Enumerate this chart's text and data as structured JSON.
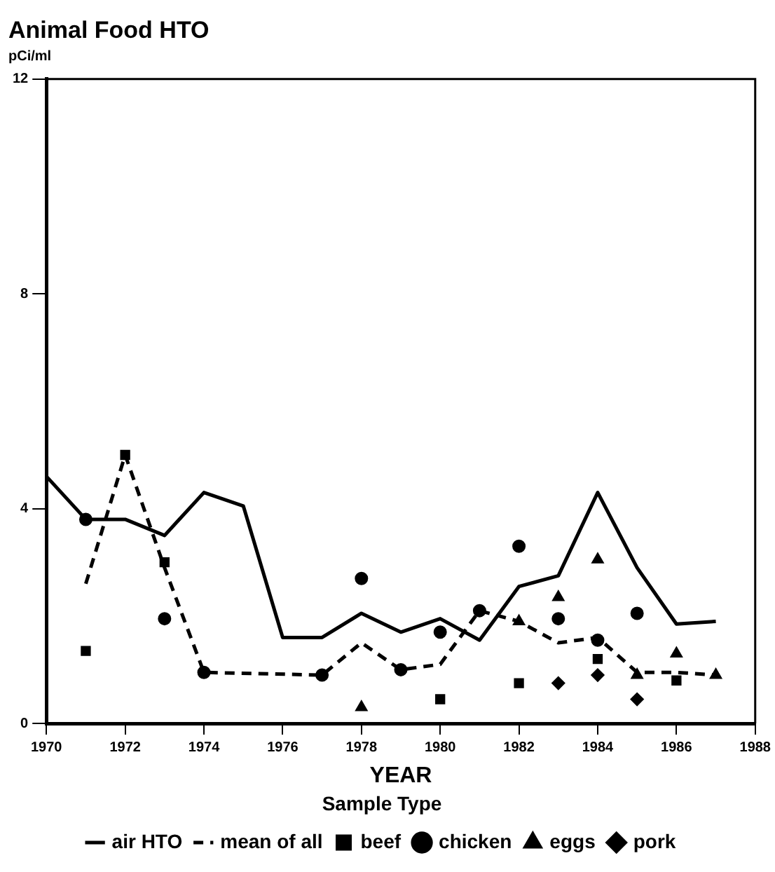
{
  "chart_data": {
    "type": "line",
    "title": "Animal Food HTO",
    "ylabel": "pCi/ml",
    "xlabel": "YEAR",
    "legend_title": "Sample Type",
    "legend": "bottom",
    "grid": false,
    "xlim": [
      1970,
      1988
    ],
    "xticks": [
      1970,
      1972,
      1974,
      1976,
      1978,
      1980,
      1982,
      1984,
      1986,
      1988
    ],
    "ylim": [
      0,
      12
    ],
    "yticks": [
      0,
      4,
      8,
      12
    ],
    "series": [
      {
        "name": "air HTO",
        "type": "line",
        "color": "#000000",
        "line_style": "solid",
        "marker": "none",
        "x": [
          1970,
          1971,
          1972,
          1973,
          1974,
          1975,
          1976,
          1977,
          1978,
          1979,
          1980,
          1981,
          1982,
          1983,
          1984,
          1985,
          1986,
          1987
        ],
        "values": [
          4.6,
          3.8,
          3.8,
          3.5,
          4.3,
          4.05,
          1.6,
          1.6,
          2.05,
          1.7,
          1.95,
          1.55,
          2.55,
          2.75,
          4.3,
          2.9,
          1.85,
          1.9
        ]
      },
      {
        "name": "mean of all",
        "type": "line",
        "color": "#000000",
        "line_style": "dashed",
        "marker": "none",
        "x": [
          1971,
          1972,
          1973,
          1974,
          1977,
          1978,
          1979,
          1980,
          1981,
          1982,
          1983,
          1984,
          1985,
          1986,
          1987
        ],
        "values": [
          2.6,
          5.0,
          2.9,
          0.95,
          0.9,
          1.5,
          1.0,
          1.1,
          2.1,
          1.9,
          1.5,
          1.6,
          0.95,
          0.95,
          0.9
        ]
      },
      {
        "name": "beef",
        "type": "scatter",
        "color": "#000000",
        "marker": "square",
        "x": [
          1971,
          1972,
          1973,
          1980,
          1982,
          1984,
          1986
        ],
        "values": [
          1.35,
          5.0,
          3.0,
          0.45,
          0.75,
          1.2,
          0.8
        ]
      },
      {
        "name": "chicken",
        "type": "scatter",
        "color": "#000000",
        "marker": "circle",
        "x": [
          1971,
          1973,
          1974,
          1977,
          1978,
          1979,
          1980,
          1981,
          1982,
          1983,
          1984,
          1985
        ],
        "values": [
          3.8,
          1.95,
          0.95,
          0.9,
          2.7,
          1.0,
          1.7,
          2.1,
          3.3,
          1.95,
          1.55,
          2.05
        ]
      },
      {
        "name": "eggs",
        "type": "scatter",
        "color": "#000000",
        "marker": "triangle",
        "x": [
          1978,
          1982,
          1983,
          1984,
          1985,
          1986,
          1987
        ],
        "values": [
          0.3,
          1.9,
          2.35,
          3.05,
          0.9,
          1.3,
          0.9
        ]
      },
      {
        "name": "pork",
        "type": "scatter",
        "color": "#000000",
        "marker": "diamond",
        "x": [
          1983,
          1984,
          1985
        ],
        "values": [
          0.75,
          0.9,
          0.45
        ]
      }
    ]
  }
}
